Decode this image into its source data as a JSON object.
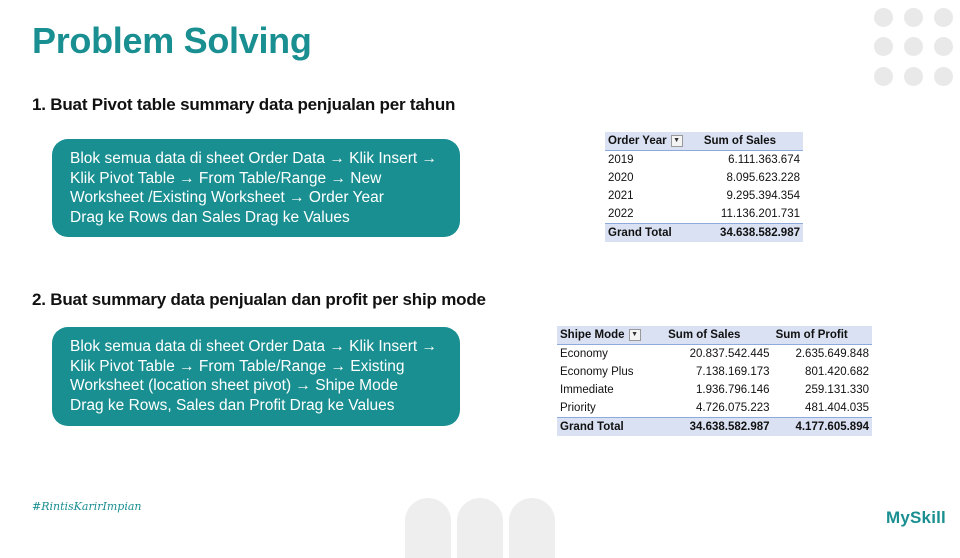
{
  "title": "Problem Solving",
  "section1": {
    "heading": "1.  Buat Pivot table summary data penjualan per tahun",
    "lines": [
      "Blok semua data di sheet Order Data → Klik Insert →",
      "Klik Pivot Table → From Table/Range → New",
      "Worksheet  /Existing Worksheet  → Order Year",
      "Drag ke Rows dan Sales Drag ke Values"
    ],
    "table": {
      "headers": [
        "Order Year",
        "Sum of Sales"
      ],
      "rows": [
        [
          "2019",
          "6.111.363.674"
        ],
        [
          "2020",
          "8.095.623.228"
        ],
        [
          "2021",
          "9.295.394.354"
        ],
        [
          "2022",
          "11.136.201.731"
        ]
      ],
      "total": [
        "Grand Total",
        "34.638.582.987"
      ]
    }
  },
  "section2": {
    "heading": "2.  Buat summary data penjualan dan profit per ship mode",
    "lines": [
      "Blok semua data di sheet Order Data → Klik Insert →",
      "Klik Pivot Table → From Table/Range → Existing",
      "Worksheet  (location sheet pivot) → Shipe Mode",
      "Drag ke Rows, Sales dan Profit Drag ke Values"
    ],
    "table": {
      "headers": [
        "Shipe Mode",
        "Sum of Sales",
        "Sum of Profit"
      ],
      "rows": [
        [
          "Economy",
          "20.837.542.445",
          "2.635.649.848"
        ],
        [
          "Economy Plus",
          "7.138.169.173",
          "801.420.682"
        ],
        [
          "Immediate",
          "1.936.796.146",
          "259.131.330"
        ],
        [
          "Priority",
          "4.726.075.223",
          "481.404.035"
        ]
      ],
      "total": [
        "Grand Total",
        "34.638.582.987",
        "4.177.605.894"
      ]
    }
  },
  "footer": {
    "hashtag": "#RintisKarirImpian",
    "logo": "MySkill"
  },
  "colors": {
    "accent": "#1a8f91",
    "pivot_header": "#d9e1f2"
  },
  "icons": [
    "filter-dropdown-icon"
  ]
}
